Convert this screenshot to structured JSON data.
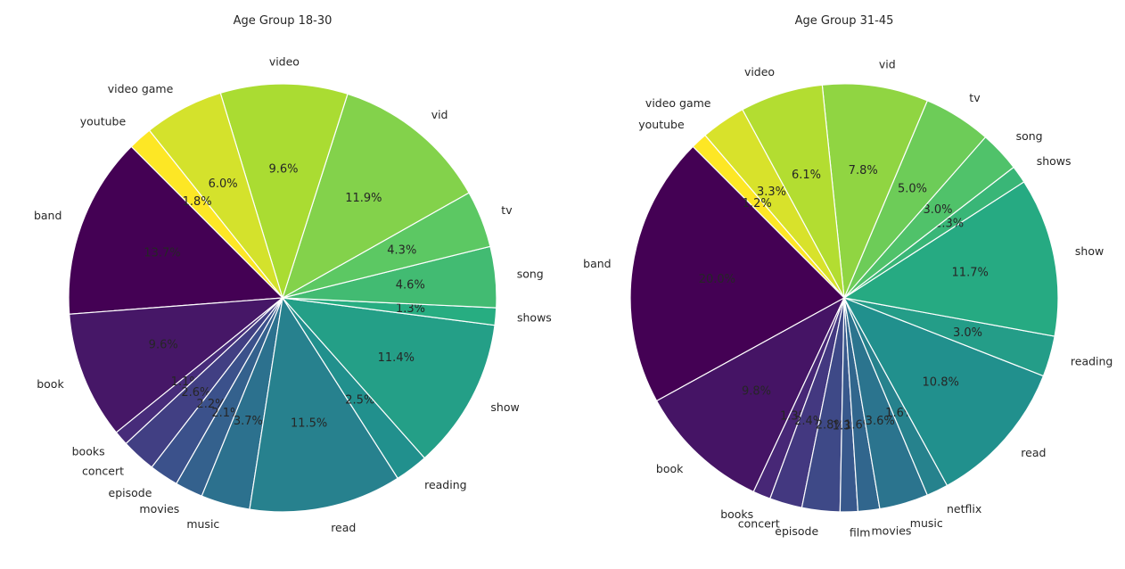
{
  "chart_data": [
    {
      "type": "pie",
      "title": "Age Group 18-30",
      "start_angle_deg": 135,
      "direction": "counterclockwise",
      "colormap": "viridis",
      "slices": [
        {
          "label": "band",
          "value": 13.7,
          "pct_label": "13.7%"
        },
        {
          "label": "book",
          "value": 9.6,
          "pct_label": "9.6%"
        },
        {
          "label": "books",
          "value": 1.1,
          "pct_label": "1.1%"
        },
        {
          "label": "concert",
          "value": 2.6,
          "pct_label": "2.6%"
        },
        {
          "label": "episode",
          "value": 2.2,
          "pct_label": "2.2%"
        },
        {
          "label": "movies",
          "value": 2.1,
          "pct_label": "2.1%"
        },
        {
          "label": "music",
          "value": 3.7,
          "pct_label": "3.7%"
        },
        {
          "label": "read",
          "value": 11.5,
          "pct_label": "11.5%"
        },
        {
          "label": "reading",
          "value": 2.5,
          "pct_label": "2.5%"
        },
        {
          "label": "show",
          "value": 11.4,
          "pct_label": "11.4%"
        },
        {
          "label": "shows",
          "value": 1.3,
          "pct_label": "1.3%"
        },
        {
          "label": "song",
          "value": 4.6,
          "pct_label": "4.6%"
        },
        {
          "label": "tv",
          "value": 4.3,
          "pct_label": "4.3%"
        },
        {
          "label": "vid",
          "value": 11.9,
          "pct_label": "11.9%"
        },
        {
          "label": "video",
          "value": 9.6,
          "pct_label": "9.6%"
        },
        {
          "label": "video game",
          "value": 6.0,
          "pct_label": "6.0%"
        },
        {
          "label": "youtube",
          "value": 1.8,
          "pct_label": "1.8%"
        }
      ]
    },
    {
      "type": "pie",
      "title": "Age Group 31-45",
      "start_angle_deg": 135,
      "direction": "counterclockwise",
      "colormap": "viridis",
      "slices": [
        {
          "label": "band",
          "value": 20.0,
          "pct_label": "20.0%"
        },
        {
          "label": "book",
          "value": 9.8,
          "pct_label": "9.8%"
        },
        {
          "label": "books",
          "value": 1.3,
          "pct_label": "1.3%"
        },
        {
          "label": "concert",
          "value": 2.4,
          "pct_label": "2.4%"
        },
        {
          "label": "episode",
          "value": 2.8,
          "pct_label": "2.8%"
        },
        {
          "label": "film",
          "value": 1.3,
          "pct_label": "1.3%"
        },
        {
          "label": "movies",
          "value": 1.6,
          "pct_label": "1.6%"
        },
        {
          "label": "music",
          "value": 3.6,
          "pct_label": "3.6%"
        },
        {
          "label": "netflix",
          "value": 1.6,
          "pct_label": "1.6%"
        },
        {
          "label": "read",
          "value": 10.8,
          "pct_label": "10.8%"
        },
        {
          "label": "reading",
          "value": 3.0,
          "pct_label": "3.0%"
        },
        {
          "label": "show",
          "value": 11.7,
          "pct_label": "11.7%"
        },
        {
          "label": "shows",
          "value": 1.3,
          "pct_label": "1.3%"
        },
        {
          "label": "song",
          "value": 3.0,
          "pct_label": "3.0%"
        },
        {
          "label": "tv",
          "value": 5.0,
          "pct_label": "5.0%"
        },
        {
          "label": "vid",
          "value": 7.8,
          "pct_label": "7.8%"
        },
        {
          "label": "video",
          "value": 6.1,
          "pct_label": "6.1%"
        },
        {
          "label": "video game",
          "value": 3.3,
          "pct_label": "3.3%"
        },
        {
          "label": "youtube",
          "value": 1.2,
          "pct_label": "1.2%"
        }
      ]
    }
  ]
}
